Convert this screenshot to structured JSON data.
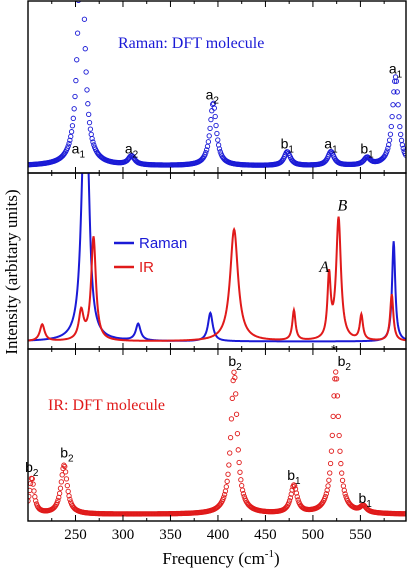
{
  "chart_data": [
    {
      "type": "scatter",
      "panel": "top",
      "title": "Raman: DFT molecule",
      "title_color": "#1a1ad6",
      "marker": "open-circle",
      "xlim": [
        200,
        598
      ],
      "series": [
        {
          "name": "Raman: DFT molecule",
          "color": "#1a1ad6",
          "baseline": 0.012,
          "peaks": [
            {
              "x": 256,
              "y": 1.55,
              "w": 4
            },
            {
              "x": 309,
              "y": 0.055,
              "w": 4
            },
            {
              "x": 395,
              "y": 0.385,
              "w": 4
            },
            {
              "x": 473,
              "y": 0.085,
              "w": 4
            },
            {
              "x": 519,
              "y": 0.085,
              "w": 4
            },
            {
              "x": 557,
              "y": 0.045,
              "w": 4
            },
            {
              "x": 587,
              "y": 0.545,
              "w": 4
            }
          ]
        }
      ],
      "annotations": [
        {
          "base": "a",
          "sub": "1",
          "x": 253,
          "y": 0.09
        },
        {
          "base": "a",
          "sub": "2",
          "x": 309,
          "y": 0.09
        },
        {
          "base": "a",
          "sub": "2",
          "x": 394,
          "y": 0.42
        },
        {
          "base": "b",
          "sub": "1",
          "x": 473,
          "y": 0.12
        },
        {
          "base": "a",
          "sub": "1",
          "x": 519,
          "y": 0.12
        },
        {
          "base": "b",
          "sub": "1",
          "x": 557,
          "y": 0.09
        },
        {
          "base": "a",
          "sub": "1",
          "x": 587,
          "y": 0.58
        }
      ]
    },
    {
      "type": "line",
      "panel": "middle",
      "xlim": [
        200,
        598
      ],
      "legend": [
        "Raman",
        "IR"
      ],
      "legend_position": "top-left",
      "series": [
        {
          "name": "Raman",
          "color": "#1a1ad6",
          "baseline": 0.015,
          "peaks": [
            {
              "x": 259,
              "y": 1.1,
              "w": 4
            },
            {
              "x": 263,
              "y": 0.6,
              "w": 3
            },
            {
              "x": 316,
              "y": 0.1,
              "w": 3
            },
            {
              "x": 392,
              "y": 0.17,
              "w": 3
            },
            {
              "x": 585,
              "y": 0.6,
              "w": 2
            }
          ]
        },
        {
          "name": "IR",
          "color": "#e01a1a",
          "baseline": 0.015,
          "peaks": [
            {
              "x": 215,
              "y": 0.1,
              "w": 3
            },
            {
              "x": 256,
              "y": 0.17,
              "w": 3
            },
            {
              "x": 269,
              "y": 0.62,
              "w": 3
            },
            {
              "x": 417,
              "y": 0.67,
              "w": 5
            },
            {
              "x": 480,
              "y": 0.18,
              "w": 2
            },
            {
              "x": 517,
              "y": 0.37,
              "w": 2
            },
            {
              "x": 527,
              "y": 0.73,
              "w": 3
            },
            {
              "x": 551,
              "y": 0.15,
              "w": 2
            },
            {
              "x": 583,
              "y": 0.28,
              "w": 2
            }
          ]
        }
      ],
      "annotations": [
        {
          "text": "A",
          "x": 512,
          "y": 0.43
        },
        {
          "text": "B",
          "x": 531,
          "y": 0.8
        }
      ]
    },
    {
      "type": "scatter",
      "panel": "bottom",
      "title": "IR: DFT molecule",
      "title_color": "#e01a1a",
      "marker": "open-circle",
      "xlim": [
        200,
        598
      ],
      "series": [
        {
          "name": "IR: DFT molecule",
          "color": "#e01a1a",
          "baseline": 0.01,
          "peaks": [
            {
              "x": 204,
              "y": 0.22,
              "w": 3
            },
            {
              "x": 238,
              "y": 0.3,
              "w": 4
            },
            {
              "x": 417,
              "y": 0.87,
              "w": 4
            },
            {
              "x": 480,
              "y": 0.17,
              "w": 4
            },
            {
              "x": 524,
              "y": 0.87,
              "w": 4
            },
            {
              "x": 553,
              "y": 0.04,
              "w": 4
            }
          ]
        }
      ],
      "annotations": [
        {
          "base": "b",
          "sub": "2",
          "x": 204,
          "y": 0.27
        },
        {
          "base": "b",
          "sub": "2",
          "x": 241,
          "y": 0.36
        },
        {
          "base": "b",
          "sub": "2",
          "x": 418,
          "y": 0.92
        },
        {
          "base": "b",
          "sub": "1",
          "x": 480,
          "y": 0.22
        },
        {
          "base": "*",
          "sub": "",
          "x": 522,
          "y": 0.99
        },
        {
          "base": "b",
          "sub": "2",
          "x": 533,
          "y": 0.92
        },
        {
          "base": "b",
          "sub": "1",
          "x": 555,
          "y": 0.08
        }
      ]
    }
  ],
  "axes": {
    "x_label": "Frequency (cm",
    "x_label_sup": "-1",
    "x_label_end": ")",
    "y_label": "Intensity (arbitary units)",
    "x_ticks": [
      250,
      300,
      350,
      400,
      450,
      500,
      550
    ]
  }
}
